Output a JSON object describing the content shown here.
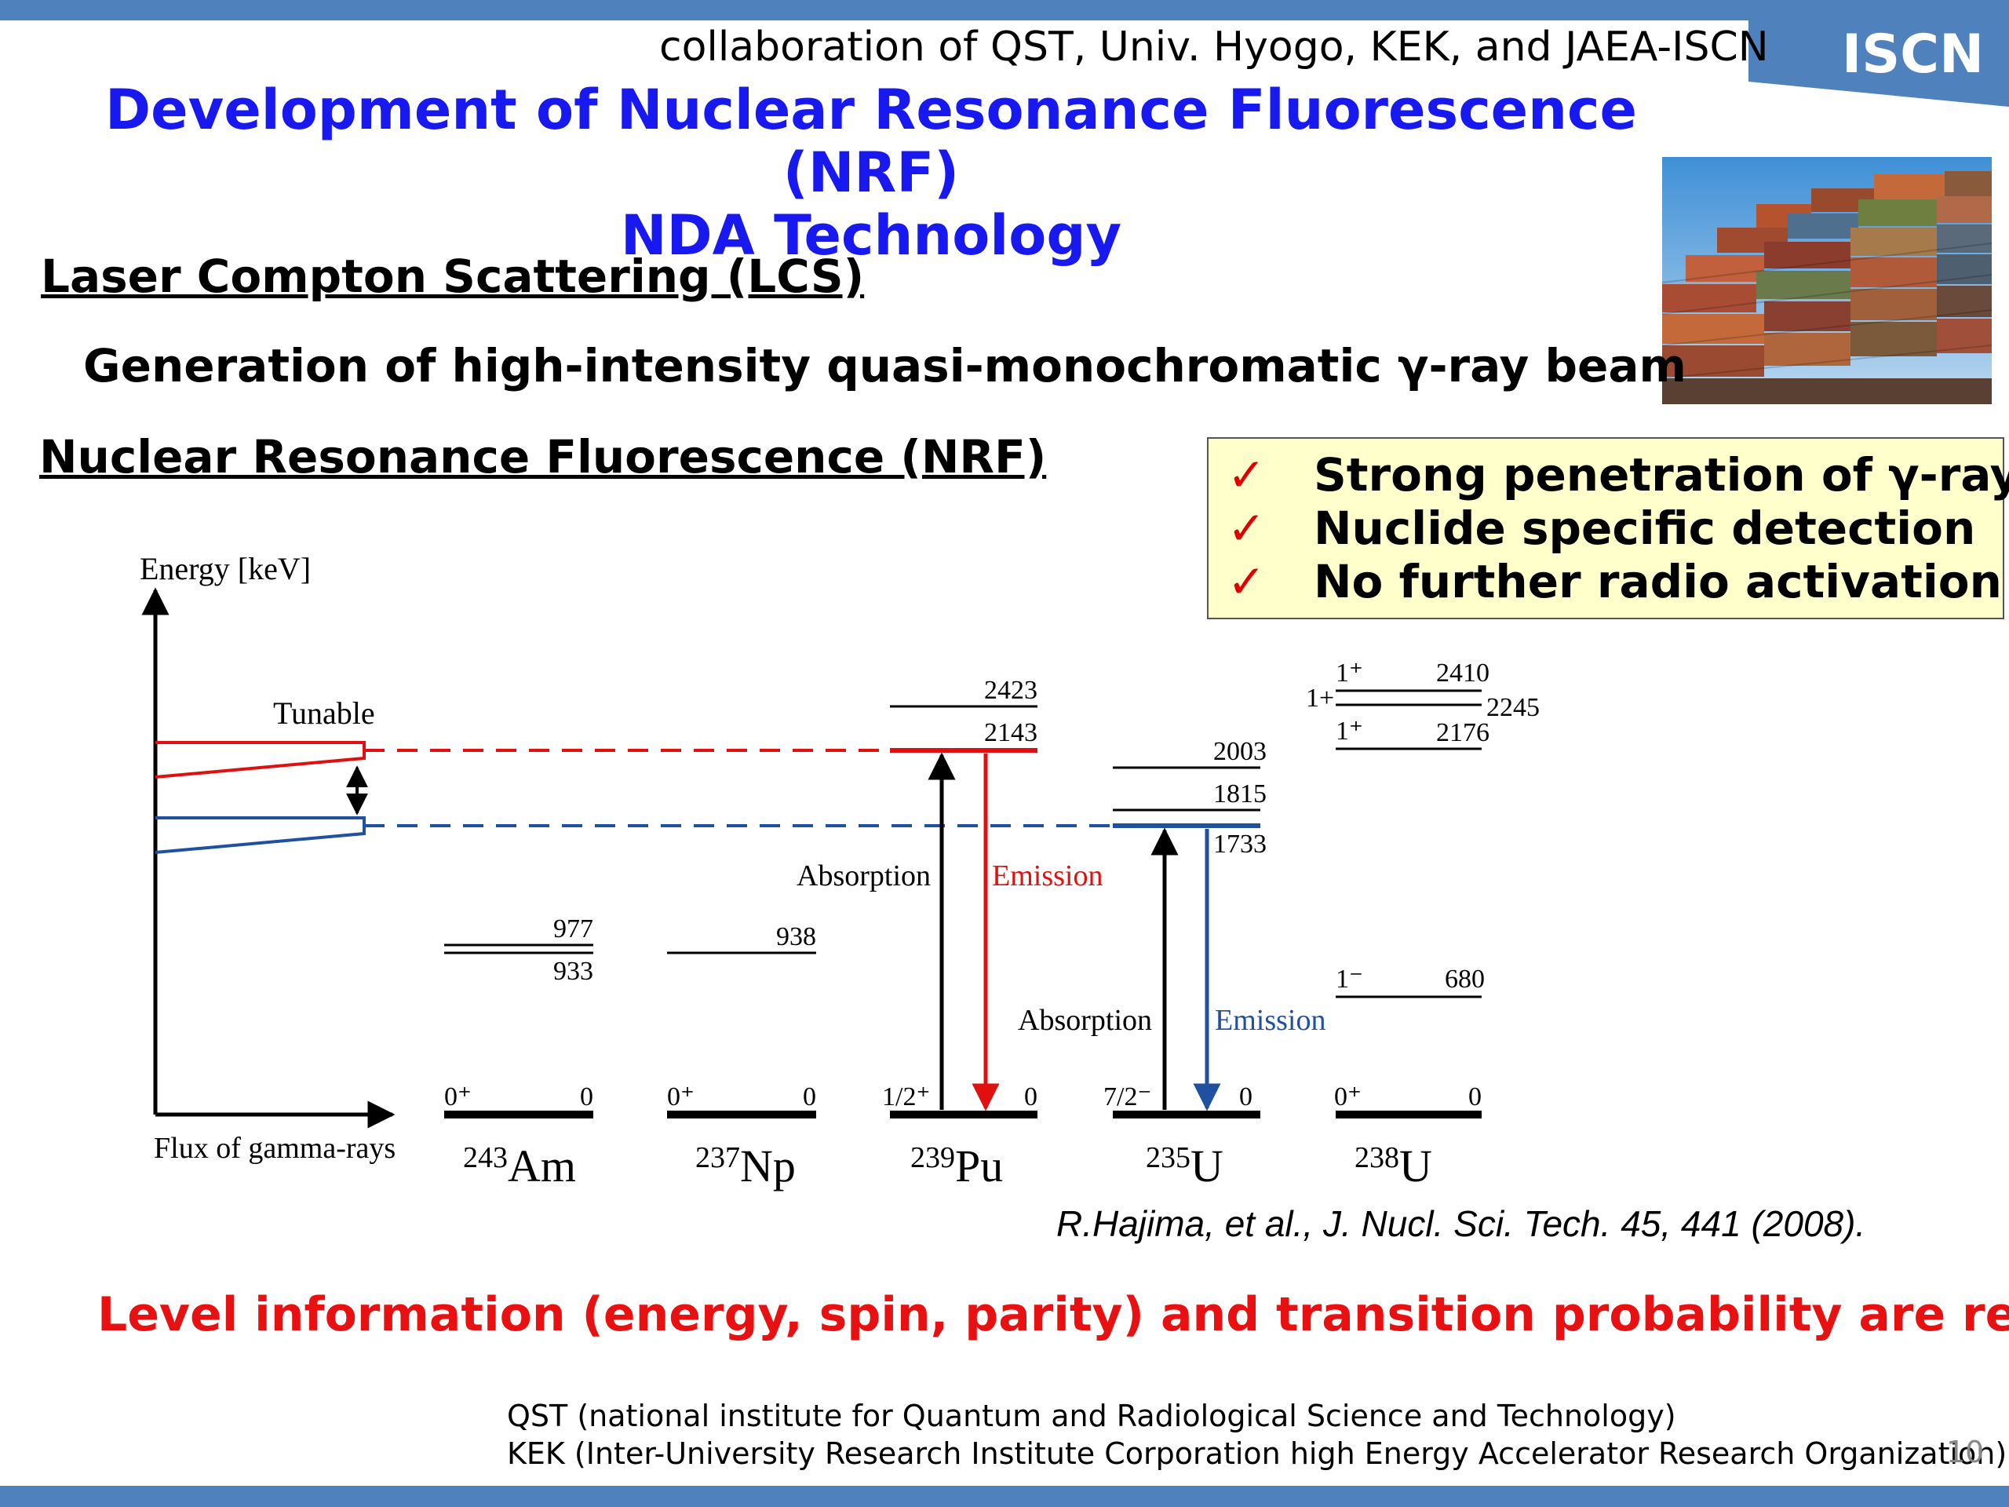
{
  "header": {
    "collaboration": "collaboration of QST, Univ. Hyogo, KEK, and JAEA-ISCN",
    "logo_text": "ISCN",
    "title_line1": "Development of Nuclear Resonance Fluorescence (NRF)",
    "title_line2": "NDA Technology"
  },
  "image": {
    "icon": "stacked-shipping-containers-photo"
  },
  "sections": {
    "lcs_heading": "Laser Compton Scattering (LCS) ",
    "lcs_description": "Generation of  high-intensity quasi-monochromatic γ-ray beam",
    "nrf_heading": "Nuclear Resonance Fluorescence (NRF)"
  },
  "advantages": {
    "check_glyph": "✓",
    "items": [
      "Strong penetration of γ-ray",
      "Nuclide specific detection",
      "No further radio activation"
    ]
  },
  "diagram": {
    "y_axis_label": "Energy [keV]",
    "x_axis_label": "Flux of gamma-rays",
    "tunable_label": "Tunable",
    "colors": {
      "red": "#e01010",
      "blue": "#2050a0",
      "black": "#000000"
    },
    "pu": {
      "absorption": "Absorption",
      "emission": "Emission"
    },
    "u235": {
      "absorption": "Absorption",
      "emission": "Emission"
    },
    "nuclides": [
      {
        "mass": "243",
        "symbol": "Am",
        "ground_spin": "0⁺",
        "ground_energy": "0",
        "levels": [
          "977",
          "933"
        ]
      },
      {
        "mass": "237",
        "symbol": "Np",
        "ground_spin": "0⁺",
        "ground_energy": "0",
        "levels": [
          "938"
        ]
      },
      {
        "mass": "239",
        "symbol": "Pu",
        "ground_spin": "1/2⁺",
        "ground_energy": "0",
        "levels": [
          "2423",
          "2143"
        ]
      },
      {
        "mass": "235",
        "symbol": "U",
        "ground_spin": "7/2⁻",
        "ground_energy": "0",
        "levels": [
          "2003",
          "1815",
          "1733"
        ]
      },
      {
        "mass": "238",
        "symbol": "U",
        "ground_spin": "0⁺",
        "ground_energy": "0",
        "levels": [
          "2410",
          "2245",
          "2176",
          "680"
        ],
        "level_spins": {
          "l2410": "1⁺",
          "l2245": "1+",
          "l2176": "1⁺",
          "l680": "1⁻"
        }
      }
    ]
  },
  "reference": "R.Hajima, et al., J. Nucl. Sci. Tech. 45, 441 (2008).",
  "requirement": "Level information (energy, spin, parity) and transition probability are required",
  "footnotes": {
    "qst": "QST (national institute for Quantum and Radiological Science and Technology)",
    "kek": "KEK (Inter-University Research Institute Corporation high Energy Accelerator Research Organization)"
  },
  "page_number": "10"
}
